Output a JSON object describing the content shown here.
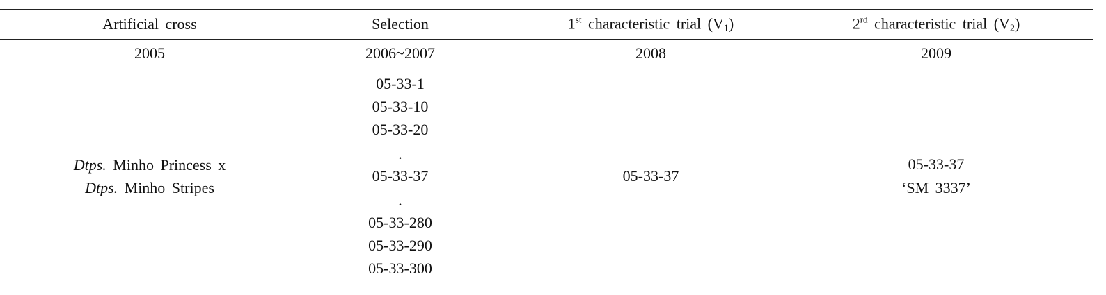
{
  "table": {
    "header": [
      "Artificial cross",
      "Selection",
      {
        "base": "1",
        "sup": "st",
        "text": "characteristic trial (V",
        "sub": "1",
        "end": ")"
      },
      {
        "base": "2",
        "sup": "rd",
        "text": "characteristic trial (V",
        "sub": "2",
        "end": ")"
      }
    ],
    "years": [
      "2005",
      "2006~2007",
      "2008",
      "2009"
    ],
    "cross": [
      {
        "genus": "Dtps.",
        "name": "Minho Princess x"
      },
      {
        "genus": "Dtps.",
        "name": "Minho Stripes"
      }
    ],
    "selection": [
      "05-33-1",
      "05-33-10",
      "05-33-20",
      ".",
      "05-33-37",
      ".",
      "05-33-280",
      "05-33-290",
      "05-33-300"
    ],
    "trial1": [
      "05-33-37"
    ],
    "trial2": [
      "05-33-37",
      "‘SM 3337’"
    ]
  }
}
